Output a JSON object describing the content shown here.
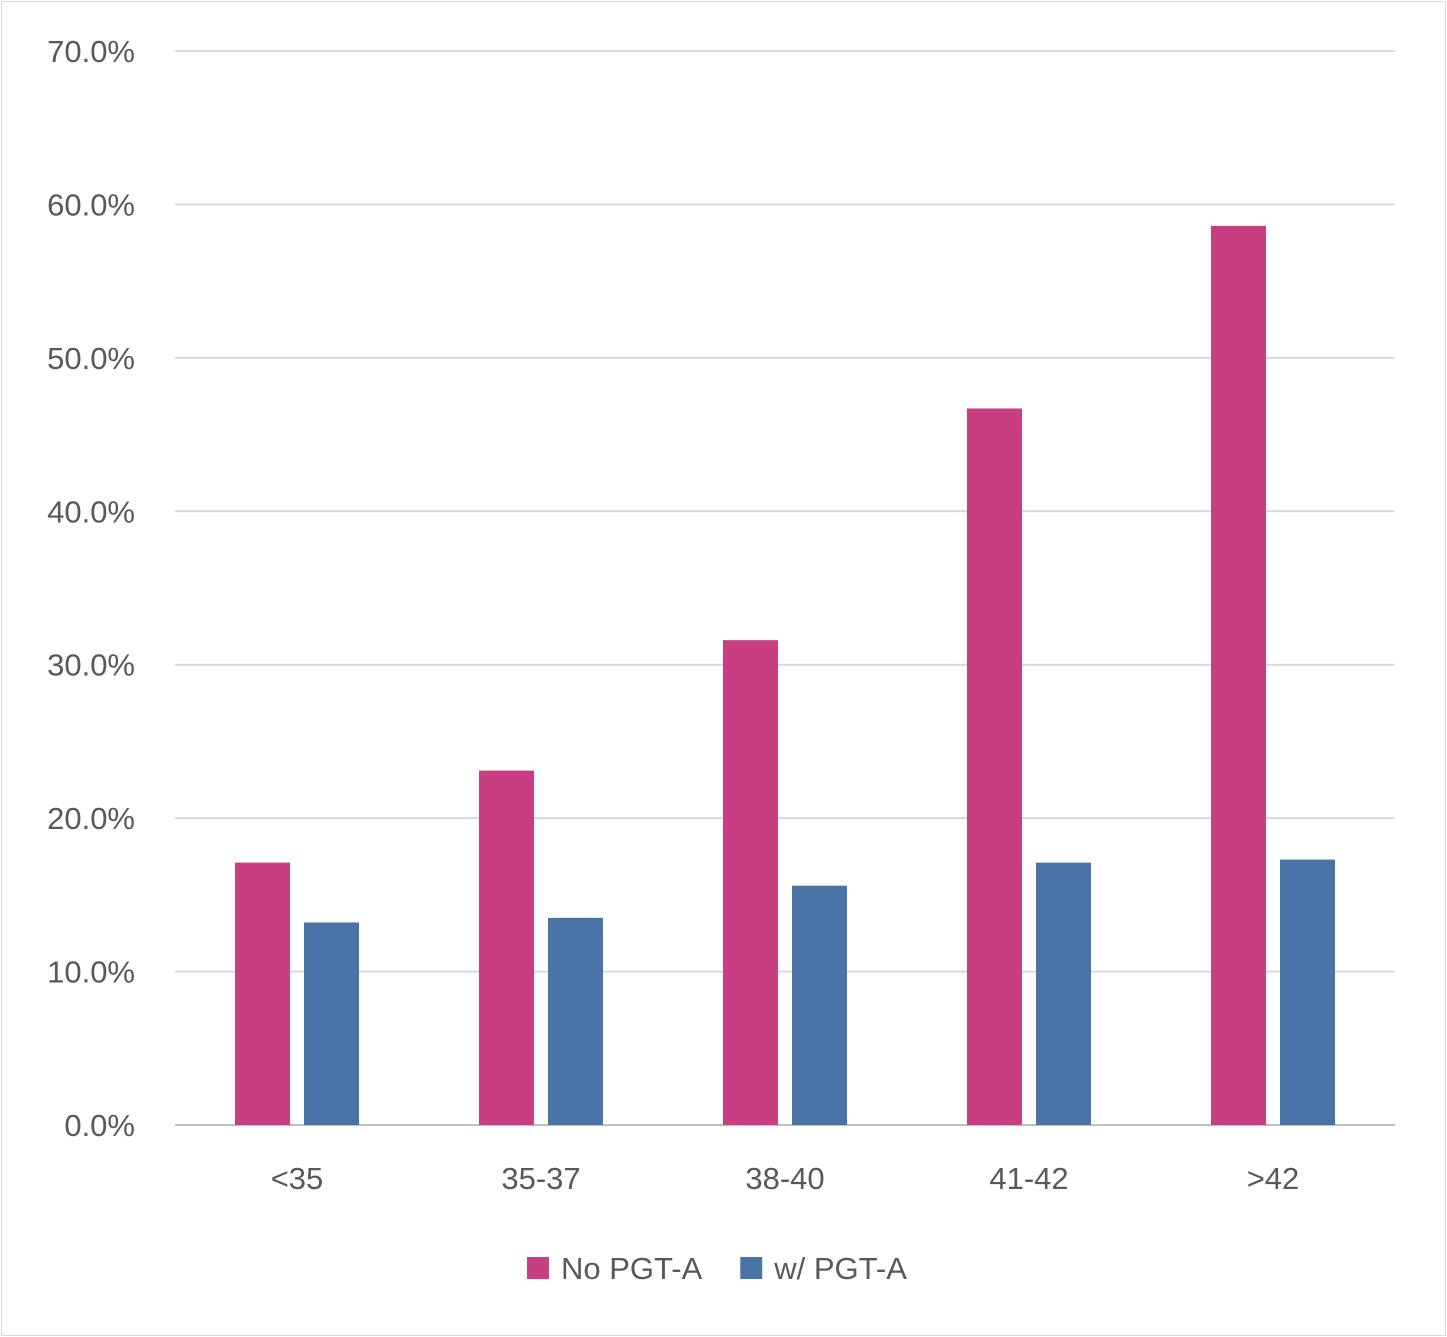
{
  "chart_data": {
    "type": "bar",
    "categories": [
      "<35",
      "35-37",
      "38-40",
      "41-42",
      ">42"
    ],
    "series": [
      {
        "name": "No PGT-A",
        "color": "#C83E80",
        "values": [
          17.1,
          23.1,
          31.6,
          46.7,
          58.6
        ]
      },
      {
        "name": "w/ PGT-A",
        "color": "#4A74A6",
        "values": [
          13.2,
          13.5,
          15.6,
          17.1,
          17.3
        ]
      }
    ],
    "ylim": [
      0,
      70
    ],
    "yticks": [
      "0.0%",
      "10.0%",
      "20.0%",
      "30.0%",
      "40.0%",
      "50.0%",
      "60.0%",
      "70.0%"
    ],
    "grid": true,
    "legend": "bottom",
    "title": "",
    "xlabel": "",
    "ylabel": ""
  }
}
